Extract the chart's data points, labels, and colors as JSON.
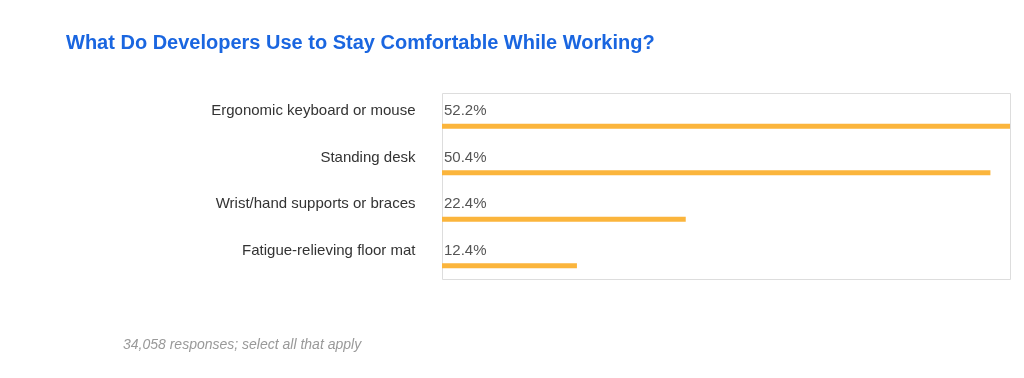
{
  "chart_data": {
    "type": "bar",
    "orientation": "horizontal",
    "title": "What Do Developers Use to Stay Comfortable While Working?",
    "categories": [
      "Ergonomic keyboard or mouse",
      "Standing desk",
      "Wrist/hand supports or braces",
      "Fatigue-relieving floor mat"
    ],
    "values": [
      52.2,
      50.4,
      22.4,
      12.4
    ],
    "value_labels": [
      "52.2%",
      "50.4%",
      "22.4%",
      "12.4%"
    ],
    "color": "#fbb53c",
    "annotations": [
      "34,058 responses; select all that apply"
    ]
  }
}
